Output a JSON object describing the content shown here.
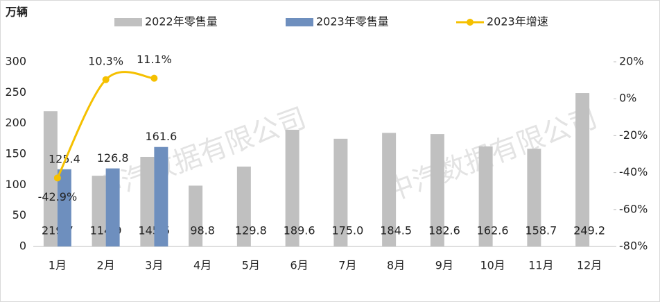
{
  "chart_data": {
    "type": "bar",
    "ylabel": "万辆",
    "watermark": "中汽数据有限公司",
    "categories": [
      "1月",
      "2月",
      "3月",
      "4月",
      "5月",
      "6月",
      "7月",
      "8月",
      "9月",
      "10月",
      "11月",
      "12月"
    ],
    "series": [
      {
        "name": "2022年零售量",
        "color": "#c0c0c0",
        "values": [
          219.7,
          114.9,
          145.5,
          98.8,
          129.8,
          189.6,
          175,
          184.5,
          182.6,
          162.6,
          158.7,
          249.2
        ],
        "value_labels": [
          "219.7",
          "114.9",
          "145.5",
          "98.8",
          "129.8",
          "189.6",
          "175.0",
          "184.5",
          "182.6",
          "162.6",
          "158.7",
          "249.2"
        ]
      },
      {
        "name": "2023年零售量",
        "color": "#6e8fbe",
        "values": [
          125.4,
          126.8,
          161.6,
          null,
          null,
          null,
          null,
          null,
          null,
          null,
          null,
          null
        ]
      },
      {
        "name": "2023年增速",
        "color": "#f5c000",
        "axis": "y2",
        "type": "line",
        "values": [
          -42.9,
          10.3,
          11.1,
          null,
          null,
          null,
          null,
          null,
          null,
          null,
          null,
          null
        ],
        "value_labels": [
          "-42.9%",
          "10.3%",
          "11.1%",
          null,
          null,
          null,
          null,
          null,
          null,
          null,
          null,
          null
        ]
      }
    ],
    "ylim": [
      0,
      300
    ],
    "yticks": [
      0,
      50,
      100,
      150,
      200,
      250,
      300
    ],
    "y2lim": [
      -80,
      20
    ],
    "y2ticks": [
      {
        "value": -80,
        "label": "-80%"
      },
      {
        "value": -60,
        "label": "-60%"
      },
      {
        "value": -40,
        "label": "-40%"
      },
      {
        "value": -20,
        "label": "-20%"
      },
      {
        "value": 0,
        "label": "0%"
      },
      {
        "value": 20,
        "label": "20%"
      }
    ],
    "legend": "top"
  }
}
